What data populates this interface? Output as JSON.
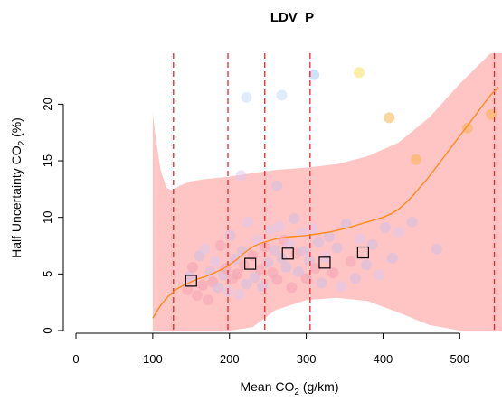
{
  "chart_data": {
    "type": "scatter",
    "title": "LDV_P",
    "xlabel": {
      "pre": "Mean CO",
      "sub": "2",
      "post": " (g/km)"
    },
    "ylabel": {
      "pre": "Half Uncertainty CO",
      "sub": "2",
      "post": " (%)"
    },
    "xlim": [
      0,
      555
    ],
    "ylim": [
      0,
      24.5
    ],
    "x_ticks": [
      0,
      100,
      200,
      300,
      400,
      500
    ],
    "y_ticks": [
      0,
      5,
      10,
      15,
      20
    ],
    "vlines": [
      127,
      198,
      246,
      305,
      545
    ],
    "grid": false,
    "legend": "none",
    "colors": {
      "band": "#ffc4c4",
      "trend": "#ff8c1a",
      "vline": "#e8262a",
      "box": "#000000"
    },
    "band": {
      "x": [
        100,
        103,
        110,
        118,
        125,
        135,
        150,
        170,
        200,
        230,
        260,
        300,
        340,
        380,
        420,
        460,
        500,
        540,
        555
      ],
      "upper": [
        19.2,
        17.5,
        14.2,
        12.6,
        12.4,
        12.8,
        13.2,
        13.4,
        13.6,
        13.9,
        14.2,
        14.4,
        14.7,
        15.4,
        16.6,
        18.8,
        21.8,
        24.5,
        24.5
      ],
      "lower": [
        0,
        0,
        0,
        0,
        0,
        0,
        0,
        0,
        0,
        0.3,
        1.8,
        2.7,
        2.9,
        2.6,
        1.6,
        0.5,
        0,
        0,
        0
      ]
    },
    "trend": {
      "x": [
        100,
        110,
        120,
        130,
        140,
        150,
        160,
        170,
        180,
        190,
        200,
        210,
        220,
        230,
        240,
        250,
        260,
        270,
        280,
        290,
        300,
        310,
        320,
        330,
        340,
        350,
        360,
        370,
        380,
        390,
        400,
        410,
        420,
        430,
        440,
        450,
        460,
        470,
        480,
        490,
        500,
        510,
        520,
        530,
        540,
        550
      ],
      "y": [
        1.1,
        2.2,
        3.0,
        3.6,
        4.0,
        4.3,
        4.6,
        4.8,
        5.1,
        5.4,
        5.8,
        6.3,
        6.9,
        7.4,
        7.7,
        7.9,
        8.1,
        8.2,
        8.3,
        8.35,
        8.4,
        8.5,
        8.6,
        8.7,
        8.85,
        9.0,
        9.2,
        9.4,
        9.6,
        9.8,
        10.0,
        10.3,
        10.7,
        11.3,
        12.0,
        12.8,
        13.6,
        14.5,
        15.4,
        16.3,
        17.2,
        18.1,
        19.0,
        19.9,
        20.8,
        21.5
      ]
    },
    "bin_points": [
      {
        "x": 150,
        "y": 4.4
      },
      {
        "x": 227,
        "y": 5.9
      },
      {
        "x": 276,
        "y": 6.8
      },
      {
        "x": 324,
        "y": 6.0
      },
      {
        "x": 374,
        "y": 6.9
      }
    ],
    "points": [
      {
        "x": 145,
        "y": 3.6,
        "c": "#f4a6b4"
      },
      {
        "x": 148,
        "y": 4.8,
        "c": "#cfc0e6"
      },
      {
        "x": 152,
        "y": 5.6,
        "c": "#f2a3b5"
      },
      {
        "x": 158,
        "y": 3.1,
        "c": "#f4a6b4"
      },
      {
        "x": 161,
        "y": 6.6,
        "c": "#cfc0e6"
      },
      {
        "x": 165,
        "y": 4.0,
        "c": "#f2a3b5"
      },
      {
        "x": 168,
        "y": 7.2,
        "c": "#dcc8ee"
      },
      {
        "x": 172,
        "y": 2.7,
        "c": "#f4a6b4"
      },
      {
        "x": 175,
        "y": 5.2,
        "c": "#cfc0e6"
      },
      {
        "x": 178,
        "y": 4.3,
        "c": "#f2a3b5"
      },
      {
        "x": 182,
        "y": 6.1,
        "c": "#dcc8ee"
      },
      {
        "x": 185,
        "y": 3.8,
        "c": "#cfc0e6"
      },
      {
        "x": 188,
        "y": 7.5,
        "c": "#f4a6b4"
      },
      {
        "x": 192,
        "y": 4.9,
        "c": "#cfc0e6"
      },
      {
        "x": 195,
        "y": 5.5,
        "c": "#f2a3b5"
      },
      {
        "x": 198,
        "y": 3.5,
        "c": "#dcc8ee"
      },
      {
        "x": 201,
        "y": 8.4,
        "c": "#cfc0e6"
      },
      {
        "x": 204,
        "y": 4.6,
        "c": "#f4a6b4"
      },
      {
        "x": 207,
        "y": 6.3,
        "c": "#cfc0e6"
      },
      {
        "x": 210,
        "y": 5.0,
        "c": "#f2a3b5"
      },
      {
        "x": 213,
        "y": 3.2,
        "c": "#dcc8ee"
      },
      {
        "x": 216,
        "y": 7.0,
        "c": "#cfc0e6"
      },
      {
        "x": 219,
        "y": 5.8,
        "c": "#f4a6b4"
      },
      {
        "x": 222,
        "y": 4.1,
        "c": "#cfc0e6"
      },
      {
        "x": 224,
        "y": 9.6,
        "c": "#dcc8ee"
      },
      {
        "x": 230,
        "y": 6.6,
        "c": "#f2a3b5"
      },
      {
        "x": 233,
        "y": 4.7,
        "c": "#cfc0e6"
      },
      {
        "x": 236,
        "y": 8.0,
        "c": "#dcc8ee"
      },
      {
        "x": 240,
        "y": 5.4,
        "c": "#f4a6b4"
      },
      {
        "x": 243,
        "y": 3.9,
        "c": "#cfc0e6"
      },
      {
        "x": 246,
        "y": 7.4,
        "c": "#f2a3b5"
      },
      {
        "x": 250,
        "y": 6.0,
        "c": "#cfc0e6"
      },
      {
        "x": 253,
        "y": 8.9,
        "c": "#dcc8ee"
      },
      {
        "x": 256,
        "y": 5.1,
        "c": "#f4a6b4"
      },
      {
        "x": 259,
        "y": 7.1,
        "c": "#cfc0e6"
      },
      {
        "x": 262,
        "y": 4.5,
        "c": "#f2a3b5"
      },
      {
        "x": 265,
        "y": 9.2,
        "c": "#dcc8ee"
      },
      {
        "x": 268,
        "y": 6.4,
        "c": "#cfc0e6"
      },
      {
        "x": 271,
        "y": 8.0,
        "c": "#f4a6b4"
      },
      {
        "x": 274,
        "y": 5.6,
        "c": "#cfc0e6"
      },
      {
        "x": 278,
        "y": 7.6,
        "c": "#dcc8ee"
      },
      {
        "x": 281,
        "y": 3.8,
        "c": "#f2a3b5"
      },
      {
        "x": 284,
        "y": 9.9,
        "c": "#cfc0e6"
      },
      {
        "x": 287,
        "y": 6.8,
        "c": "#f4a6b4"
      },
      {
        "x": 290,
        "y": 5.2,
        "c": "#cfc0e6"
      },
      {
        "x": 294,
        "y": 8.6,
        "c": "#dcc8ee"
      },
      {
        "x": 297,
        "y": 7.0,
        "c": "#cfc0e6"
      },
      {
        "x": 300,
        "y": 4.6,
        "c": "#f2a3b5"
      },
      {
        "x": 304,
        "y": 6.2,
        "c": "#cfc0e6"
      },
      {
        "x": 308,
        "y": 9.0,
        "c": "#dcc8ee"
      },
      {
        "x": 312,
        "y": 5.5,
        "c": "#f4a6b4"
      },
      {
        "x": 316,
        "y": 7.8,
        "c": "#cfc0e6"
      },
      {
        "x": 320,
        "y": 4.2,
        "c": "#cfc0e6"
      },
      {
        "x": 325,
        "y": 6.5,
        "c": "#dcc8ee"
      },
      {
        "x": 330,
        "y": 8.3,
        "c": "#cfc0e6"
      },
      {
        "x": 335,
        "y": 5.1,
        "c": "#f2a3b5"
      },
      {
        "x": 340,
        "y": 7.3,
        "c": "#cfc0e6"
      },
      {
        "x": 346,
        "y": 3.9,
        "c": "#dcc8ee"
      },
      {
        "x": 352,
        "y": 9.4,
        "c": "#cfc0e6"
      },
      {
        "x": 358,
        "y": 6.1,
        "c": "#f4a6b4"
      },
      {
        "x": 364,
        "y": 4.6,
        "c": "#cfc0e6"
      },
      {
        "x": 370,
        "y": 8.1,
        "c": "#dcc8ee"
      },
      {
        "x": 378,
        "y": 5.8,
        "c": "#cfc0e6"
      },
      {
        "x": 386,
        "y": 7.6,
        "c": "#cfc0e6"
      },
      {
        "x": 395,
        "y": 4.9,
        "c": "#dcc8ee"
      },
      {
        "x": 403,
        "y": 9.1,
        "c": "#cfc0e6"
      },
      {
        "x": 412,
        "y": 6.4,
        "c": "#cfc0e6"
      },
      {
        "x": 421,
        "y": 8.7,
        "c": "#dcc8ee"
      },
      {
        "x": 438,
        "y": 9.6,
        "c": "#cfc0e6"
      },
      {
        "x": 470,
        "y": 7.2,
        "c": "#cfc0e6"
      },
      {
        "x": 215,
        "y": 13.7,
        "c": "#dcc8ee"
      },
      {
        "x": 262,
        "y": 12.8,
        "c": "#cfc0e6"
      },
      {
        "x": 222,
        "y": 20.6,
        "c": "#c8dcf7"
      },
      {
        "x": 268,
        "y": 20.8,
        "c": "#c8dcf7"
      },
      {
        "x": 310,
        "y": 22.6,
        "c": "#a6c8f0"
      },
      {
        "x": 369,
        "y": 22.8,
        "c": "#f7e25c"
      },
      {
        "x": 408,
        "y": 18.8,
        "c": "#f7b44f"
      },
      {
        "x": 443,
        "y": 15.1,
        "c": "#f7b44f"
      },
      {
        "x": 510,
        "y": 17.9,
        "c": "#f7b44f"
      },
      {
        "x": 541,
        "y": 19.1,
        "c": "#f7b44f"
      }
    ]
  }
}
